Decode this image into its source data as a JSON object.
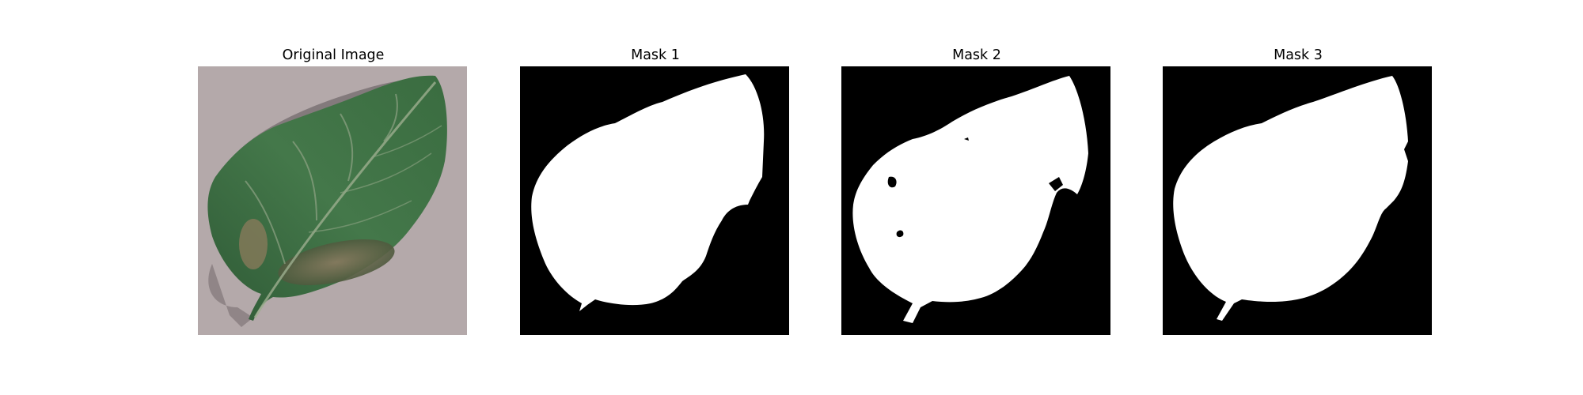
{
  "figure": {
    "panels": [
      {
        "title": "Original Image",
        "content": "leaf-photo"
      },
      {
        "title": "Mask 1",
        "content": "binary-mask"
      },
      {
        "title": "Mask 2",
        "content": "binary-mask"
      },
      {
        "title": "Mask 3",
        "content": "binary-mask"
      }
    ]
  },
  "colors": {
    "background": "#ffffff",
    "mask_foreground": "#ffffff",
    "mask_background": "#000000",
    "leaf_green": "#3f6e44",
    "lesion_brown": "#7d6d55",
    "surface_gray": "#b4a9aa"
  }
}
